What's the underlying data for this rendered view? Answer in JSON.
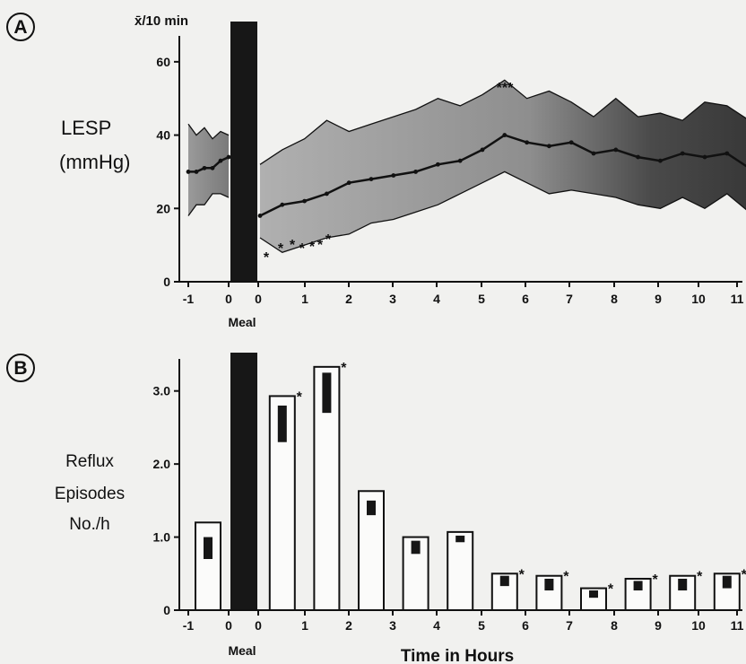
{
  "chart_data": [
    {
      "panel": "A",
      "type": "area",
      "unit_label": "x̄/10 min",
      "ylabel_line1": "LESP",
      "ylabel_line2": "(mmHg)",
      "meal_label": "Meal",
      "ylim": [
        0,
        70
      ],
      "yticks": [
        "0",
        "20",
        "40",
        "60"
      ],
      "xticks": [
        "-1",
        "0",
        "0",
        "1",
        "2",
        "3",
        "4",
        "5",
        "6",
        "7",
        "8",
        "9",
        "10",
        "11"
      ],
      "significance_marks": [
        "*",
        "*",
        "*",
        "*",
        "*",
        "*",
        "*",
        "***"
      ],
      "pre_meal": {
        "x": [
          -1.0,
          -0.8,
          -0.6,
          -0.4,
          -0.2,
          0.0
        ],
        "mean": [
          30,
          30,
          31,
          31,
          33,
          34
        ],
        "upper": [
          43,
          40,
          42,
          39,
          41,
          40
        ],
        "lower": [
          18,
          21,
          21,
          24,
          24,
          23
        ]
      },
      "post_meal": {
        "x": [
          0.0,
          0.5,
          1.0,
          1.5,
          2.0,
          2.5,
          3.0,
          3.5,
          4.0,
          4.5,
          5.0,
          5.5,
          6.0,
          6.5,
          7.0,
          7.5,
          8.0,
          8.5,
          9.0,
          9.5,
          10.0,
          10.5,
          11.0
        ],
        "mean": [
          18,
          21,
          22,
          24,
          27,
          28,
          29,
          30,
          32,
          33,
          36,
          40,
          38,
          37,
          38,
          35,
          36,
          34,
          33,
          35,
          34,
          35,
          31
        ],
        "upper": [
          32,
          36,
          39,
          44,
          41,
          43,
          45,
          47,
          50,
          48,
          51,
          55,
          50,
          52,
          49,
          45,
          50,
          45,
          46,
          44,
          49,
          48,
          44
        ],
        "lower": [
          12,
          8,
          10,
          12,
          13,
          16,
          17,
          19,
          21,
          24,
          27,
          30,
          27,
          24,
          25,
          24,
          23,
          21,
          20,
          23,
          20,
          24,
          19
        ]
      }
    },
    {
      "panel": "B",
      "type": "bar",
      "ylabel_line1": "Reflux",
      "ylabel_line2": "Episodes",
      "ylabel_line3": "No./h",
      "meal_label": "Meal",
      "xlabel": "Time in Hours",
      "ylim": [
        0,
        3.5
      ],
      "yticks": [
        "0",
        "1.0",
        "2.0",
        "3.0"
      ],
      "xticks": [
        "-1",
        "0",
        "0",
        "1",
        "2",
        "3",
        "4",
        "5",
        "6",
        "7",
        "8",
        "9",
        "10",
        "11"
      ],
      "bars": [
        {
          "x": -0.5,
          "value": 1.2,
          "sem_top": 1.0,
          "sem_bottom": 0.7,
          "star": ""
        },
        {
          "x": 0.5,
          "value": 2.93,
          "sem_top": 2.8,
          "sem_bottom": 2.3,
          "star": "*"
        },
        {
          "x": 1.5,
          "value": 3.33,
          "sem_top": 3.25,
          "sem_bottom": 2.7,
          "star": "*"
        },
        {
          "x": 2.5,
          "value": 1.63,
          "sem_top": 1.5,
          "sem_bottom": 1.3,
          "star": ""
        },
        {
          "x": 3.5,
          "value": 1.0,
          "sem_top": 0.95,
          "sem_bottom": 0.77,
          "star": ""
        },
        {
          "x": 4.5,
          "value": 1.07,
          "sem_top": 1.02,
          "sem_bottom": 0.93,
          "star": ""
        },
        {
          "x": 5.5,
          "value": 0.5,
          "sem_top": 0.47,
          "sem_bottom": 0.33,
          "star": "*"
        },
        {
          "x": 6.5,
          "value": 0.47,
          "sem_top": 0.43,
          "sem_bottom": 0.27,
          "star": "*"
        },
        {
          "x": 7.5,
          "value": 0.3,
          "sem_top": 0.27,
          "sem_bottom": 0.17,
          "star": "*"
        },
        {
          "x": 8.5,
          "value": 0.43,
          "sem_top": 0.4,
          "sem_bottom": 0.27,
          "star": "*"
        },
        {
          "x": 9.5,
          "value": 0.47,
          "sem_top": 0.43,
          "sem_bottom": 0.27,
          "star": "*"
        },
        {
          "x": 10.5,
          "value": 0.5,
          "sem_top": 0.47,
          "sem_bottom": 0.3,
          "star": "*"
        }
      ]
    }
  ],
  "colors": {
    "background": "#f1f1ef",
    "band_light": "#9b9b9b",
    "band_dark": "#3e3e3e",
    "meal_bar": "#171717",
    "ink": "#111111"
  }
}
